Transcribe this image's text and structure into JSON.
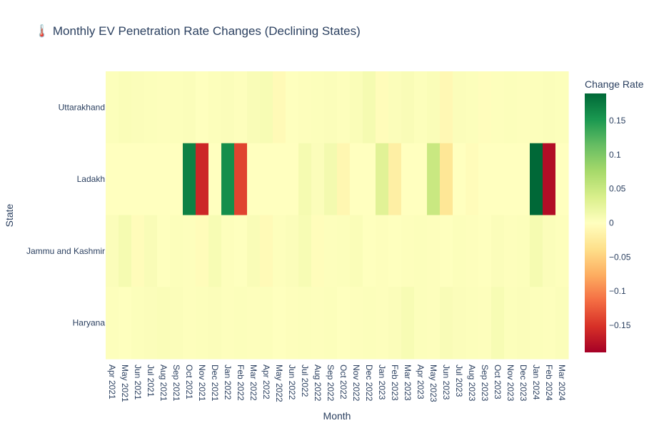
{
  "chart_data": {
    "type": "heatmap",
    "title": "🌡️ Monthly EV Penetration Rate Changes (Declining States)",
    "xlabel": "Month",
    "ylabel": "State",
    "colorbar_title": "Change Rate",
    "colorscale": "RdYlGn",
    "zlim": [
      -0.19,
      0.19
    ],
    "colorbar_ticks": [
      0.15,
      0.1,
      0.05,
      0,
      -0.05,
      -0.1,
      -0.15
    ],
    "colorbar_tick_labels": [
      "0.15",
      "0.1",
      "0.05",
      "0",
      "−0.05",
      "−0.1",
      "−0.15"
    ],
    "x": [
      "Apr 2021",
      "May 2021",
      "Jun 2021",
      "Jul 2021",
      "Aug 2021",
      "Sep 2021",
      "Oct 2021",
      "Nov 2021",
      "Dec 2021",
      "Jan 2022",
      "Feb 2022",
      "Mar 2022",
      "Apr 2022",
      "May 2022",
      "Jun 2022",
      "Jul 2022",
      "Aug 2022",
      "Sep 2022",
      "Oct 2022",
      "Nov 2022",
      "Dec 2022",
      "Jan 2023",
      "Feb 2023",
      "Mar 2023",
      "Apr 2023",
      "May 2023",
      "Jun 2023",
      "Jul 2023",
      "Aug 2023",
      "Sep 2023",
      "Oct 2023",
      "Nov 2023",
      "Dec 2023",
      "Jan 2024",
      "Feb 2024",
      "Mar 2024"
    ],
    "y": [
      "Uttarakhand",
      "Ladakh",
      "Jammu and Kashmir",
      "Haryana"
    ],
    "z": [
      [
        0.003,
        0.005,
        0.004,
        0.003,
        0.002,
        0.003,
        0.004,
        0.001,
        0.003,
        0.004,
        0.002,
        0.006,
        0.008,
        -0.006,
        0.001,
        0.002,
        0.003,
        0.004,
        0.002,
        0.005,
        0.01,
        -0.004,
        0.004,
        0.006,
        0.003,
        0.005,
        -0.008,
        0.004,
        0.003,
        -0.002,
        0.002,
        0.003,
        0.002,
        0.003,
        0.004,
        0.003
      ],
      [
        0.0,
        0.0,
        0.0,
        0.0,
        0.0,
        0.0,
        0.17,
        -0.16,
        0.0,
        0.16,
        -0.14,
        0.0,
        0.0,
        0.0,
        0.0,
        0.01,
        0.004,
        0.012,
        -0.01,
        0.0,
        0.0,
        0.03,
        -0.02,
        0.0,
        0.0,
        0.05,
        -0.03,
        0.0,
        -0.004,
        0.0,
        0.0,
        0.0,
        0.0,
        0.19,
        -0.18,
        0.0
      ],
      [
        0.004,
        0.01,
        -0.004,
        0.006,
        0.001,
        0.003,
        0.002,
        -0.004,
        0.008,
        0.002,
        0.001,
        0.006,
        -0.006,
        0.002,
        0.004,
        0.008,
        -0.003,
        0.002,
        0.003,
        0.005,
        0.001,
        0.002,
        0.001,
        0.002,
        0.003,
        0.002,
        0.001,
        0.003,
        0.002,
        0.001,
        0.004,
        0.002,
        0.003,
        0.01,
        0.004,
        0.002
      ],
      [
        0.002,
        0.001,
        0.003,
        0.004,
        0.005,
        0.004,
        0.002,
        0.003,
        0.004,
        0.002,
        0.003,
        0.002,
        0.003,
        0.001,
        0.002,
        0.003,
        0.002,
        0.003,
        0.001,
        0.002,
        0.003,
        0.002,
        0.004,
        0.008,
        0.003,
        0.002,
        0.006,
        0.004,
        0.003,
        0.002,
        0.008,
        0.003,
        0.004,
        0.003,
        0.002,
        0.004
      ]
    ]
  }
}
